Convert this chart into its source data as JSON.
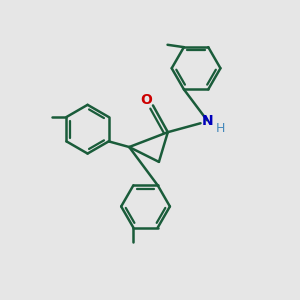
{
  "bg_color": "#e6e6e6",
  "bond_color": "#1a5c3a",
  "bond_width": 1.8,
  "atom_colors": {
    "O": "#cc0000",
    "N": "#0000bb",
    "H": "#4488bb",
    "C": "#1a5c3a"
  },
  "figsize": [
    3.0,
    3.0
  ],
  "dpi": 100,
  "xlim": [
    0,
    10
  ],
  "ylim": [
    0,
    10
  ]
}
